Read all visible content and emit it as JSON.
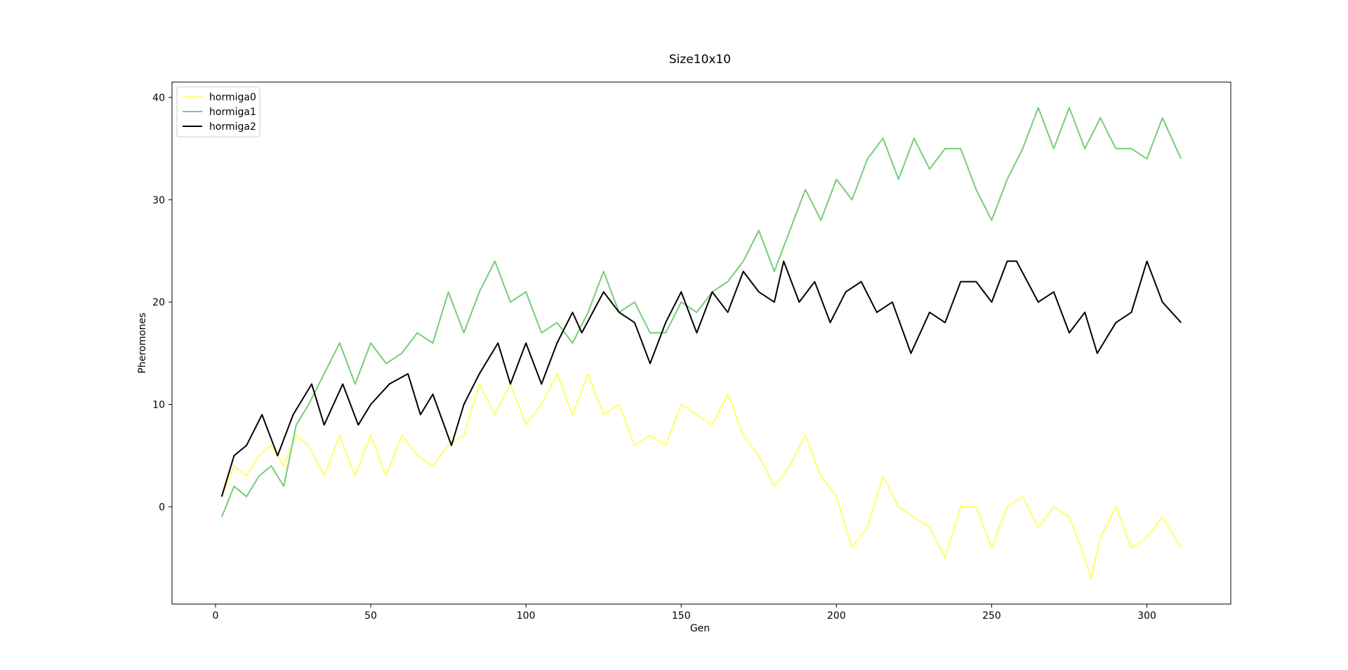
{
  "chart_data": {
    "type": "line",
    "title": "Size10x10",
    "xlabel": "Gen",
    "ylabel": "Pheromones",
    "xlim": [
      -14,
      327
    ],
    "ylim": [
      -9.5,
      41.5
    ],
    "xticks": [
      0,
      50,
      100,
      150,
      200,
      250,
      300
    ],
    "yticks": [
      0,
      10,
      20,
      30,
      40
    ],
    "legend_position": "top-left",
    "series": [
      {
        "name": "hormiga0",
        "color": "#ffff66",
        "x": [
          2,
          6,
          10,
          14,
          18,
          22,
          26,
          30,
          35,
          40,
          45,
          50,
          55,
          60,
          65,
          70,
          75,
          80,
          85,
          90,
          95,
          100,
          105,
          110,
          115,
          120,
          125,
          130,
          135,
          140,
          145,
          150,
          155,
          160,
          165,
          170,
          175,
          180,
          185,
          190,
          195,
          200,
          205,
          210,
          215,
          220,
          225,
          230,
          235,
          240,
          245,
          250,
          255,
          260,
          265,
          270,
          275,
          280,
          282,
          285,
          290,
          295,
          300,
          305,
          311
        ],
        "y": [
          1,
          4,
          3,
          5,
          6,
          4,
          7,
          6,
          3,
          7,
          3,
          7,
          3,
          7,
          5,
          4,
          6,
          7,
          12,
          9,
          12,
          8,
          10,
          13,
          9,
          13,
          9,
          10,
          6,
          7,
          6,
          10,
          9,
          8,
          11,
          7,
          5,
          2,
          4,
          7,
          3,
          1,
          -4,
          -2,
          3,
          0,
          -1,
          -2,
          -5,
          0,
          0,
          -4,
          0,
          1,
          -2,
          0,
          -1,
          -5,
          -7,
          -3,
          0,
          -4,
          -3,
          -1,
          -4
        ]
      },
      {
        "name": "hormiga1",
        "color": "#77cc77",
        "x": [
          2,
          6,
          10,
          14,
          18,
          22,
          26,
          30,
          35,
          40,
          45,
          50,
          55,
          60,
          65,
          70,
          75,
          80,
          85,
          90,
          95,
          100,
          105,
          110,
          115,
          120,
          125,
          130,
          135,
          140,
          145,
          150,
          155,
          160,
          165,
          170,
          175,
          180,
          185,
          190,
          195,
          200,
          205,
          210,
          215,
          220,
          225,
          230,
          235,
          240,
          245,
          250,
          255,
          260,
          265,
          270,
          275,
          280,
          285,
          290,
          295,
          300,
          305,
          311
        ],
        "y": [
          -1,
          2,
          1,
          3,
          4,
          2,
          8,
          10,
          13,
          16,
          12,
          16,
          14,
          15,
          17,
          16,
          21,
          17,
          21,
          24,
          20,
          21,
          17,
          18,
          16,
          19,
          23,
          19,
          20,
          17,
          17,
          20,
          19,
          21,
          22,
          24,
          27,
          23,
          27,
          31,
          28,
          32,
          30,
          34,
          36,
          32,
          36,
          33,
          35,
          35,
          31,
          28,
          32,
          35,
          39,
          35,
          39,
          35,
          38,
          35,
          35,
          34,
          38,
          34
        ]
      },
      {
        "name": "hormiga2",
        "color": "#000000",
        "x": [
          2,
          6,
          10,
          15,
          20,
          25,
          31,
          35,
          41,
          46,
          50,
          56,
          62,
          66,
          70,
          76,
          80,
          85,
          91,
          95,
          100,
          105,
          110,
          115,
          118,
          125,
          130,
          135,
          140,
          145,
          150,
          155,
          160,
          165,
          170,
          175,
          180,
          183,
          188,
          193,
          198,
          203,
          208,
          213,
          218,
          224,
          230,
          235,
          240,
          245,
          250,
          255,
          258,
          265,
          270,
          275,
          280,
          284,
          290,
          295,
          300,
          305,
          311
        ],
        "y": [
          1,
          5,
          6,
          9,
          5,
          9,
          12,
          8,
          12,
          8,
          10,
          12,
          13,
          9,
          11,
          6,
          10,
          13,
          16,
          12,
          16,
          12,
          16,
          19,
          17,
          21,
          19,
          18,
          14,
          18,
          21,
          17,
          21,
          19,
          23,
          21,
          20,
          24,
          20,
          22,
          18,
          21,
          22,
          19,
          20,
          15,
          19,
          18,
          22,
          22,
          20,
          24,
          24,
          20,
          21,
          17,
          19,
          15,
          18,
          19,
          24,
          20,
          18
        ]
      }
    ]
  }
}
